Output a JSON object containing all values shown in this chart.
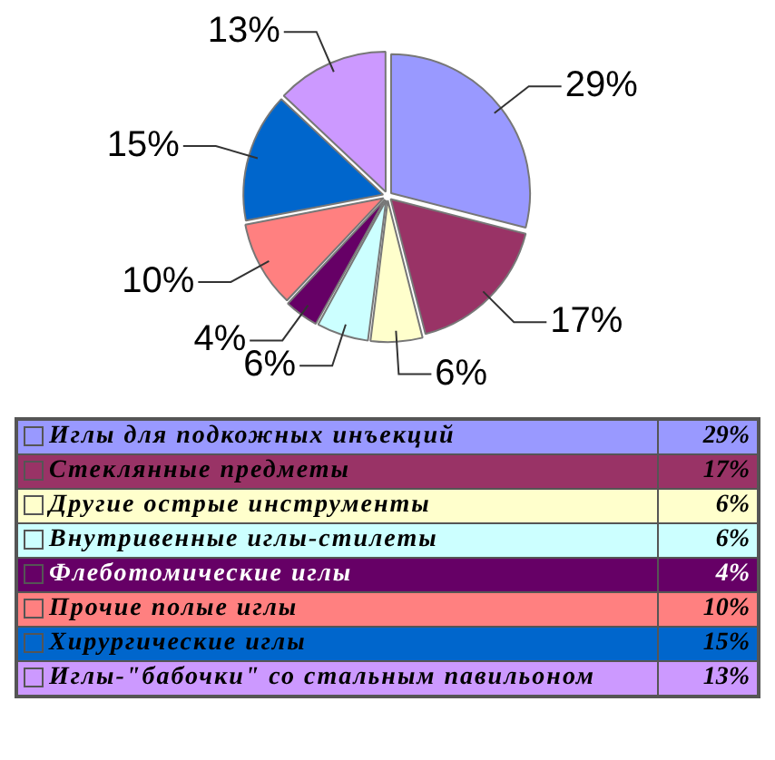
{
  "chart_data": {
    "type": "pie",
    "categories": [
      "Иглы для подкожных инъекций",
      "Стеклянные предметы",
      "Другие острые инструменты",
      "Внутривенные иглы-стилеты",
      "Флеботомические иглы",
      "Прочие полые иглы",
      "Хирургические иглы",
      "Иглы-\"бабочки\" со стальным павильоном"
    ],
    "values": [
      29,
      17,
      6,
      6,
      4,
      10,
      15,
      13
    ],
    "colors": [
      "#9999ff",
      "#993366",
      "#ffffcc",
      "#ccffff",
      "#660066",
      "#ff8080",
      "#0066cc",
      "#cc99ff"
    ],
    "value_labels": [
      "29%",
      "17%",
      "6%",
      "6%",
      "4%",
      "10%",
      "15%",
      "13%"
    ],
    "legend": "bottom"
  }
}
